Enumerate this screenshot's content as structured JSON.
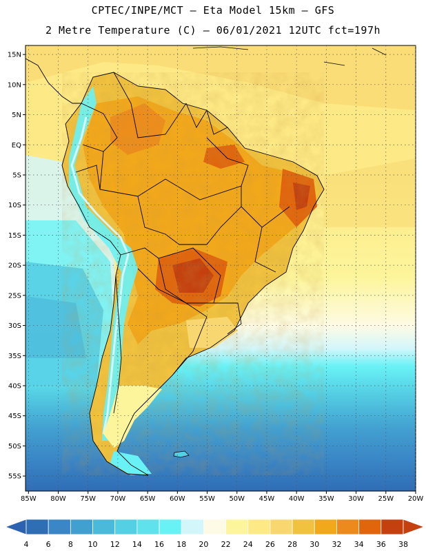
{
  "header": {
    "line1": "CPTEC/INPE/MCT –  Eta Model 15km – GFS",
    "line2": "2 Metre Temperature (C) – 06/01/2021 12UTC fct=197h"
  },
  "map": {
    "lat_labels": [
      "15N",
      "10N",
      "5N",
      "EQ",
      "5S",
      "10S",
      "15S",
      "20S",
      "25S",
      "30S",
      "35S",
      "40S",
      "45S",
      "50S",
      "55S"
    ],
    "lon_labels": [
      "85W",
      "80W",
      "75W",
      "70W",
      "65W",
      "60W",
      "55W",
      "50W",
      "45W",
      "40W",
      "35W",
      "30W",
      "25W",
      "20W"
    ],
    "lat_values": [
      15,
      10,
      5,
      0,
      -5,
      -10,
      -15,
      -20,
      -25,
      -30,
      -35,
      -40,
      -45,
      -50,
      -55
    ],
    "lon_values": [
      -85,
      -80,
      -75,
      -70,
      -65,
      -60,
      -55,
      -50,
      -45,
      -40,
      -35,
      -30,
      -25,
      -20
    ],
    "lat_range": [
      -57.5,
      16.5
    ],
    "lon_range": [
      -85.5,
      -20
    ]
  },
  "colorbar": {
    "labels": [
      "4",
      "6",
      "8",
      "10",
      "12",
      "14",
      "16",
      "18",
      "20",
      "22",
      "24",
      "26",
      "28",
      "30",
      "32",
      "34",
      "36",
      "38"
    ],
    "low_color": "#2c62b0",
    "high_color": "#c4410f",
    "colors": [
      "#2f6db5",
      "#3a86c6",
      "#42a0d0",
      "#4bb9da",
      "#55cfe4",
      "#5fe2ec",
      "#69f2f6",
      "#d3f6fb",
      "#fdfbe5",
      "#fdf59b",
      "#fde985",
      "#f8d770",
      "#f0c23f",
      "#f2a81b",
      "#ec8a1d",
      "#e0650d",
      "#c4410f"
    ]
  }
}
